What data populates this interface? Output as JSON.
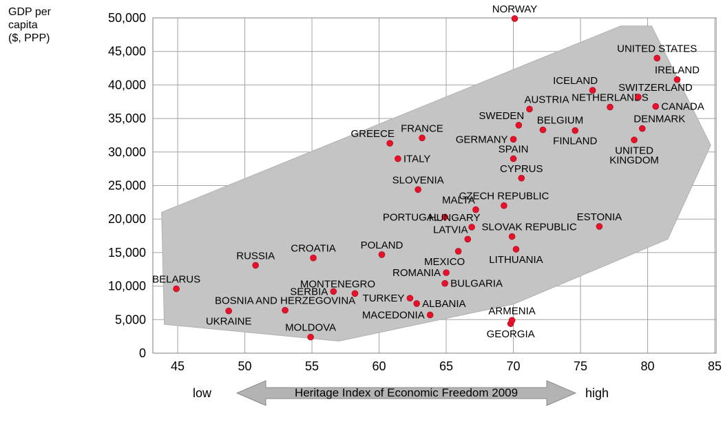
{
  "chart_data": {
    "type": "scatter",
    "title": "",
    "xlabel": "Heritage Index of Economic Freedom 2009",
    "ylabel": "GDP per capita ($, PPP)",
    "ylabel_lines": [
      "GDP per",
      "capita",
      "($, PPP)"
    ],
    "x_axis_annotation": {
      "label": "Heritage Index of Economic Freedom 2009",
      "low": "low",
      "high": "high"
    },
    "xlim": [
      43.15,
      85.1
    ],
    "ylim": [
      0,
      50000
    ],
    "x_ticks": [
      45,
      50,
      55,
      60,
      65,
      70,
      75,
      80,
      85
    ],
    "y_ticks": [
      0,
      5000,
      10000,
      15000,
      20000,
      25000,
      30000,
      35000,
      40000,
      45000,
      50000
    ],
    "grid": true,
    "point_color": "#e8112a",
    "point_edge_color": "#9e0b20",
    "grid_color": "#a3a3a3",
    "border_color": "#7f7f7f",
    "envelope_color": "#c4c4c4",
    "envelope_edge_color": "#b0b0b0",
    "envelope_polygon": [
      [
        43.8,
        21000
      ],
      [
        78.0,
        48800
      ],
      [
        80.3,
        48800
      ],
      [
        84.7,
        31000
      ],
      [
        81.5,
        17000
      ],
      [
        70.0,
        7300
      ],
      [
        57.0,
        1800
      ],
      [
        44.0,
        4300
      ]
    ],
    "points": [
      {
        "label": "BELARUS",
        "x": 44.9,
        "y": 9600,
        "label_pos": "above"
      },
      {
        "label": "UKRAINE",
        "x": 48.8,
        "y": 6300,
        "label_pos": "below"
      },
      {
        "label": "RUSSIA",
        "x": 50.8,
        "y": 13100,
        "label_pos": "above"
      },
      {
        "label": "BOSNIA AND HERZEGOVINA",
        "x": 53.0,
        "y": 6400,
        "label_pos": "above"
      },
      {
        "label": "MOLDOVA",
        "x": 54.9,
        "y": 2400,
        "label_pos": "above"
      },
      {
        "label": "CROATIA",
        "x": 55.1,
        "y": 14200,
        "label_pos": "above"
      },
      {
        "label": "SERBIA",
        "x": 56.6,
        "y": 9200,
        "label_pos": "left"
      },
      {
        "label": "MONTENEGRO",
        "x": 58.2,
        "y": 8900,
        "label_pos": "above-left"
      },
      {
        "label": "POLAND",
        "x": 60.2,
        "y": 14700,
        "label_pos": "above"
      },
      {
        "label": "GREECE",
        "x": 60.8,
        "y": 31300,
        "label_pos": "above-left"
      },
      {
        "label": "ITALY",
        "x": 61.4,
        "y": 29000,
        "label_pos": "right"
      },
      {
        "label": "TURKEY",
        "x": 62.3,
        "y": 8200,
        "label_pos": "left"
      },
      {
        "label": "ALBANIA",
        "x": 62.8,
        "y": 7400,
        "label_pos": "right"
      },
      {
        "label": "MACEDONIA",
        "x": 63.8,
        "y": 5700,
        "label_pos": "left"
      },
      {
        "label": "SLOVENIA",
        "x": 62.9,
        "y": 24400,
        "label_pos": "above"
      },
      {
        "label": "FRANCE",
        "x": 63.2,
        "y": 32100,
        "label_pos": "above"
      },
      {
        "label": "PORTUGAL",
        "x": 64.9,
        "y": 20300,
        "label_pos": "left"
      },
      {
        "label": "ROMANIA",
        "x": 65.0,
        "y": 12000,
        "label_pos": "left"
      },
      {
        "label": "BULGARIA",
        "x": 64.9,
        "y": 10400,
        "label_pos": "right"
      },
      {
        "label": "MEXICO",
        "x": 65.9,
        "y": 15200,
        "label_pos": "below-left"
      },
      {
        "label": "LATVIA",
        "x": 66.6,
        "y": 17000,
        "label_pos": "above-left"
      },
      {
        "label": "HUNGARY",
        "x": 66.9,
        "y": 18800,
        "label_pos": "above-left"
      },
      {
        "label": "MALTA",
        "x": 67.2,
        "y": 21400,
        "label_pos": "above-left"
      },
      {
        "label": "CZECH REPUBLIC",
        "x": 69.3,
        "y": 22000,
        "label_pos": "above"
      },
      {
        "label": "SLOVAK REPUBLIC",
        "x": 69.9,
        "y": 17400,
        "label_pos": "above-right"
      },
      {
        "label": "LITHUANIA",
        "x": 70.2,
        "y": 15500,
        "label_pos": "below"
      },
      {
        "label": "GEORGIA",
        "x": 69.8,
        "y": 4400,
        "label_pos": "below"
      },
      {
        "label": "ARMENIA",
        "x": 69.9,
        "y": 4900,
        "label_pos": "above"
      },
      {
        "label": "NORWAY",
        "x": 70.1,
        "y": 49900,
        "label_pos": "above"
      },
      {
        "label": "SPAIN",
        "x": 70.0,
        "y": 29000,
        "label_pos": "above"
      },
      {
        "label": "GERMANY",
        "x": 70.0,
        "y": 31900,
        "label_pos": "left"
      },
      {
        "label": "CYPRUS",
        "x": 70.6,
        "y": 26100,
        "label_pos": "above"
      },
      {
        "label": "SWEDEN",
        "x": 70.4,
        "y": 34000,
        "label_pos": "above-left"
      },
      {
        "label": "AUSTRIA",
        "x": 71.2,
        "y": 36400,
        "label_pos": "above-right"
      },
      {
        "label": "BELGIUM",
        "x": 72.2,
        "y": 33300,
        "label_pos": "above-right"
      },
      {
        "label": "FINLAND",
        "x": 74.6,
        "y": 33200,
        "label_pos": "below"
      },
      {
        "label": "ICELAND",
        "x": 75.9,
        "y": 39200,
        "label_pos": "above-left"
      },
      {
        "label": "NETHERLANDS",
        "x": 77.2,
        "y": 36700,
        "label_pos": "above"
      },
      {
        "label": "ESTONIA",
        "x": 76.4,
        "y": 18900,
        "label_pos": "above"
      },
      {
        "label": "SWITZERLAND",
        "x": 79.3,
        "y": 38200,
        "label_pos": "above-right"
      },
      {
        "label": "UNITED\nKINGDOM",
        "x": 79.0,
        "y": 31800,
        "label_pos": "below"
      },
      {
        "label": "DENMARK",
        "x": 79.6,
        "y": 33500,
        "label_pos": "above-right"
      },
      {
        "label": "CANADA",
        "x": 80.6,
        "y": 36800,
        "label_pos": "right"
      },
      {
        "label": "UNITED STATES",
        "x": 80.7,
        "y": 44000,
        "label_pos": "above"
      },
      {
        "label": "IRELAND",
        "x": 82.2,
        "y": 40800,
        "label_pos": "above"
      }
    ]
  }
}
